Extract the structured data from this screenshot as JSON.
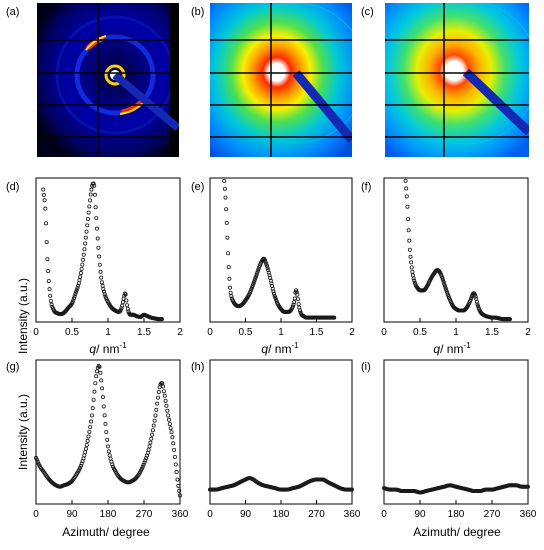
{
  "panels": {
    "images": [
      {
        "label": "(a)",
        "style": "ring_dark_oriented",
        "colormap": "jet"
      },
      {
        "label": "(b)",
        "style": "broad_ring_bright",
        "colormap": "jet"
      },
      {
        "label": "(c)",
        "style": "broad_ring_bright_faint",
        "colormap": "jet"
      }
    ]
  },
  "axes": {
    "saxs_ylabel": "Intensity (a.u.)",
    "saxs_xlabel_q": "q",
    "saxs_xlabel_unit": "/ nm",
    "saxs_xlabel_exp": "-1",
    "azi_ylabel": "Intensity (a.u.)",
    "azi_xlabel": "Azimuth/ degree"
  },
  "chart_data": [
    {
      "label": "(d)",
      "type": "scatter",
      "xlim": [
        0,
        2
      ],
      "ylim": [
        0,
        1
      ],
      "x_ticks": [
        "0",
        "0.5",
        "1",
        "1.5",
        "2"
      ],
      "y_ticks": [],
      "xlabel": "q/ nm-1",
      "ylabel": "Intensity (a.u.)",
      "x": [
        0.1,
        0.13,
        0.16,
        0.2,
        0.25,
        0.3,
        0.35,
        0.4,
        0.45,
        0.5,
        0.55,
        0.6,
        0.65,
        0.7,
        0.74,
        0.77,
        0.79,
        0.81,
        0.83,
        0.86,
        0.9,
        0.95,
        1.0,
        1.05,
        1.1,
        1.15,
        1.19,
        1.22,
        1.24,
        1.26,
        1.28,
        1.31,
        1.35,
        1.4,
        1.45,
        1.5,
        1.55,
        1.6,
        1.65,
        1.7,
        1.75
      ],
      "y": [
        0.92,
        0.78,
        0.42,
        0.17,
        0.08,
        0.06,
        0.055,
        0.07,
        0.1,
        0.13,
        0.2,
        0.28,
        0.42,
        0.62,
        0.8,
        0.92,
        0.96,
        0.94,
        0.78,
        0.56,
        0.33,
        0.2,
        0.14,
        0.1,
        0.08,
        0.07,
        0.1,
        0.17,
        0.2,
        0.13,
        0.08,
        0.05,
        0.05,
        0.04,
        0.035,
        0.05,
        0.04,
        0.03,
        0.025,
        0.02,
        0.02
      ]
    },
    {
      "label": "(e)",
      "type": "scatter",
      "xlim": [
        0,
        2
      ],
      "ylim": [
        0,
        1
      ],
      "x_ticks": [
        "0",
        "0.5",
        "1",
        "1.5",
        "2"
      ],
      "y_ticks": [],
      "xlabel": "q/ nm-1",
      "ylabel": "",
      "x": [
        0.2,
        0.22,
        0.24,
        0.26,
        0.28,
        0.3,
        0.33,
        0.36,
        0.4,
        0.45,
        0.5,
        0.55,
        0.6,
        0.65,
        0.7,
        0.74,
        0.76,
        0.78,
        0.82,
        0.86,
        0.9,
        0.95,
        1.0,
        1.05,
        1.1,
        1.15,
        1.19,
        1.21,
        1.23,
        1.25,
        1.28,
        1.32,
        1.36,
        1.4,
        1.45,
        1.5,
        1.55,
        1.6,
        1.65,
        1.7,
        1.75
      ],
      "y": [
        0.98,
        0.85,
        0.65,
        0.42,
        0.25,
        0.18,
        0.14,
        0.12,
        0.11,
        0.12,
        0.15,
        0.19,
        0.25,
        0.32,
        0.39,
        0.43,
        0.44,
        0.42,
        0.36,
        0.28,
        0.2,
        0.13,
        0.09,
        0.07,
        0.07,
        0.09,
        0.15,
        0.22,
        0.19,
        0.12,
        0.06,
        0.04,
        0.03,
        0.03,
        0.03,
        0.03,
        0.03,
        0.03,
        0.03,
        0.03,
        0.03
      ]
    },
    {
      "label": "(f)",
      "type": "scatter",
      "xlim": [
        0,
        2
      ],
      "ylim": [
        0,
        1
      ],
      "x_ticks": [
        "0",
        "0.5",
        "1",
        "1.5",
        "2"
      ],
      "y_ticks": [],
      "xlabel": "q/ nm-1",
      "ylabel": "",
      "x": [
        0.3,
        0.32,
        0.34,
        0.36,
        0.38,
        0.4,
        0.43,
        0.46,
        0.5,
        0.55,
        0.6,
        0.65,
        0.7,
        0.74,
        0.77,
        0.8,
        0.84,
        0.88,
        0.92,
        0.96,
        1.0,
        1.05,
        1.1,
        1.15,
        1.2,
        1.23,
        1.25,
        1.27,
        1.3,
        1.34,
        1.38,
        1.42,
        1.46,
        1.5,
        1.55,
        1.6,
        1.65,
        1.7,
        1.75
      ],
      "y": [
        0.98,
        0.85,
        0.66,
        0.5,
        0.4,
        0.33,
        0.27,
        0.24,
        0.22,
        0.22,
        0.25,
        0.3,
        0.34,
        0.36,
        0.35,
        0.32,
        0.26,
        0.2,
        0.15,
        0.11,
        0.09,
        0.08,
        0.08,
        0.1,
        0.15,
        0.19,
        0.2,
        0.18,
        0.12,
        0.07,
        0.05,
        0.04,
        0.035,
        0.03,
        0.03,
        0.025,
        0.02,
        0.02,
        0.02
      ]
    },
    {
      "label": "(g)",
      "type": "scatter",
      "xlim": [
        0,
        360
      ],
      "ylim": [
        0,
        1
      ],
      "x_ticks": [
        "0",
        "90",
        "180",
        "270",
        "360"
      ],
      "y_ticks": [],
      "xlabel": "Azimuth/ degree",
      "ylabel": "Intensity (a.u.)",
      "x": [
        0,
        10,
        20,
        30,
        40,
        50,
        60,
        70,
        80,
        90,
        100,
        110,
        120,
        130,
        140,
        145,
        150,
        155,
        158,
        160,
        163,
        166,
        170,
        175,
        180,
        190,
        200,
        210,
        220,
        230,
        240,
        250,
        260,
        270,
        280,
        290,
        300,
        305,
        310,
        315,
        320,
        325,
        330,
        335,
        340,
        345,
        350,
        355,
        360
      ],
      "y": [
        0.32,
        0.26,
        0.22,
        0.18,
        0.15,
        0.13,
        0.12,
        0.13,
        0.14,
        0.16,
        0.2,
        0.25,
        0.33,
        0.45,
        0.62,
        0.75,
        0.88,
        0.95,
        0.96,
        0.93,
        0.86,
        0.78,
        0.66,
        0.52,
        0.4,
        0.28,
        0.22,
        0.18,
        0.16,
        0.15,
        0.16,
        0.18,
        0.22,
        0.28,
        0.36,
        0.48,
        0.64,
        0.74,
        0.82,
        0.84,
        0.78,
        0.7,
        0.62,
        0.55,
        0.48,
        0.38,
        0.26,
        0.14,
        0.06
      ]
    },
    {
      "label": "(h)",
      "type": "scatter",
      "xlim": [
        0,
        360
      ],
      "ylim": [
        0,
        1
      ],
      "x_ticks": [
        "0",
        "90",
        "180",
        "270",
        "360"
      ],
      "y_ticks": [],
      "xlabel": "",
      "ylabel": "",
      "x": [
        0,
        15,
        30,
        45,
        60,
        75,
        90,
        100,
        110,
        120,
        135,
        150,
        165,
        180,
        195,
        210,
        225,
        240,
        255,
        270,
        285,
        300,
        315,
        330,
        345,
        360
      ],
      "y": [
        0.1,
        0.1,
        0.11,
        0.12,
        0.13,
        0.15,
        0.17,
        0.18,
        0.17,
        0.15,
        0.13,
        0.12,
        0.11,
        0.1,
        0.1,
        0.11,
        0.12,
        0.14,
        0.16,
        0.17,
        0.17,
        0.15,
        0.13,
        0.11,
        0.1,
        0.1
      ]
    },
    {
      "label": "(i)",
      "type": "scatter",
      "xlim": [
        0,
        360
      ],
      "ylim": [
        0,
        1
      ],
      "x_ticks": [
        "0",
        "90",
        "180",
        "270",
        "360"
      ],
      "y_ticks": [],
      "xlabel": "Azimuth/ degree",
      "ylabel": "",
      "x": [
        0,
        15,
        30,
        45,
        60,
        75,
        90,
        105,
        120,
        135,
        150,
        165,
        180,
        195,
        210,
        225,
        240,
        255,
        270,
        285,
        300,
        315,
        330,
        345,
        360
      ],
      "y": [
        0.11,
        0.1,
        0.1,
        0.09,
        0.09,
        0.09,
        0.08,
        0.09,
        0.1,
        0.11,
        0.12,
        0.13,
        0.12,
        0.11,
        0.1,
        0.09,
        0.09,
        0.1,
        0.1,
        0.11,
        0.12,
        0.13,
        0.13,
        0.12,
        0.12
      ]
    }
  ]
}
